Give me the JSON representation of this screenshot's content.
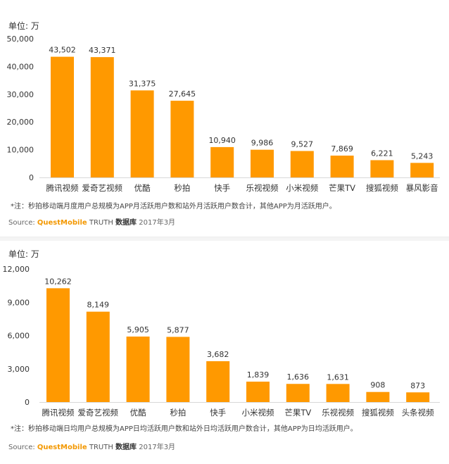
{
  "charts": [
    {
      "unit_label": "单位: 万",
      "note": "*注：秒拍移动端月度用户总规模为APP月活跃用户数和站外月活跃用户数合计，其他APP为月活跃用户。",
      "source": {
        "prefix": "Source:",
        "brand": "QuestMobile",
        "truth": "TRUTH",
        "db": "数据库",
        "date": "2017年3月"
      }
    },
    {
      "unit_label": "单位: 万",
      "note": "*注：秒拍移动端日均用户总规模为APP日均活跃用户数和站外日均活跃用户数合计，其他APP为日均活跃用户。",
      "source": {
        "prefix": "Source:",
        "brand": "QuestMobile",
        "truth": "TRUTH",
        "db": "数据库",
        "date": "2017年3月"
      }
    }
  ],
  "chart_data": [
    {
      "type": "bar",
      "categories": [
        "腾讯视频",
        "爱奇艺视频",
        "优酷",
        "秒拍",
        "快手",
        "乐视视频",
        "小米视频",
        "芒果TV",
        "搜狐视频",
        "暴风影音"
      ],
      "values": [
        43502,
        43371,
        31375,
        27645,
        10940,
        9986,
        9527,
        7869,
        6221,
        5243
      ],
      "value_labels": [
        "43,502",
        "43,371",
        "31,375",
        "27,645",
        "10,940",
        "9,986",
        "9,527",
        "7,869",
        "6,221",
        "5,243"
      ],
      "ylim": [
        0,
        50000
      ],
      "yticks": [
        0,
        10000,
        20000,
        30000,
        40000,
        50000
      ],
      "ytick_labels": [
        "0",
        "10,000",
        "20,000",
        "30,000",
        "40,000",
        "50,000"
      ],
      "bar_color": "#ff9900",
      "grid": false
    },
    {
      "type": "bar",
      "categories": [
        "腾讯视频",
        "爱奇艺视频",
        "优酷",
        "秒拍",
        "快手",
        "小米视频",
        "芒果TV",
        "乐视视频",
        "搜狐视频",
        "头条视频"
      ],
      "values": [
        10262,
        8149,
        5905,
        5877,
        3682,
        1839,
        1636,
        1631,
        908,
        873
      ],
      "value_labels": [
        "10,262",
        "8,149",
        "5,905",
        "5,877",
        "3,682",
        "1,839",
        "1,636",
        "1,631",
        "908",
        "873"
      ],
      "ylim": [
        0,
        12000
      ],
      "yticks": [
        0,
        3000,
        6000,
        9000,
        12000
      ],
      "ytick_labels": [
        "0",
        "3,000",
        "6,000",
        "9,000",
        "12,000"
      ],
      "bar_color": "#ff9900",
      "grid": false
    }
  ]
}
